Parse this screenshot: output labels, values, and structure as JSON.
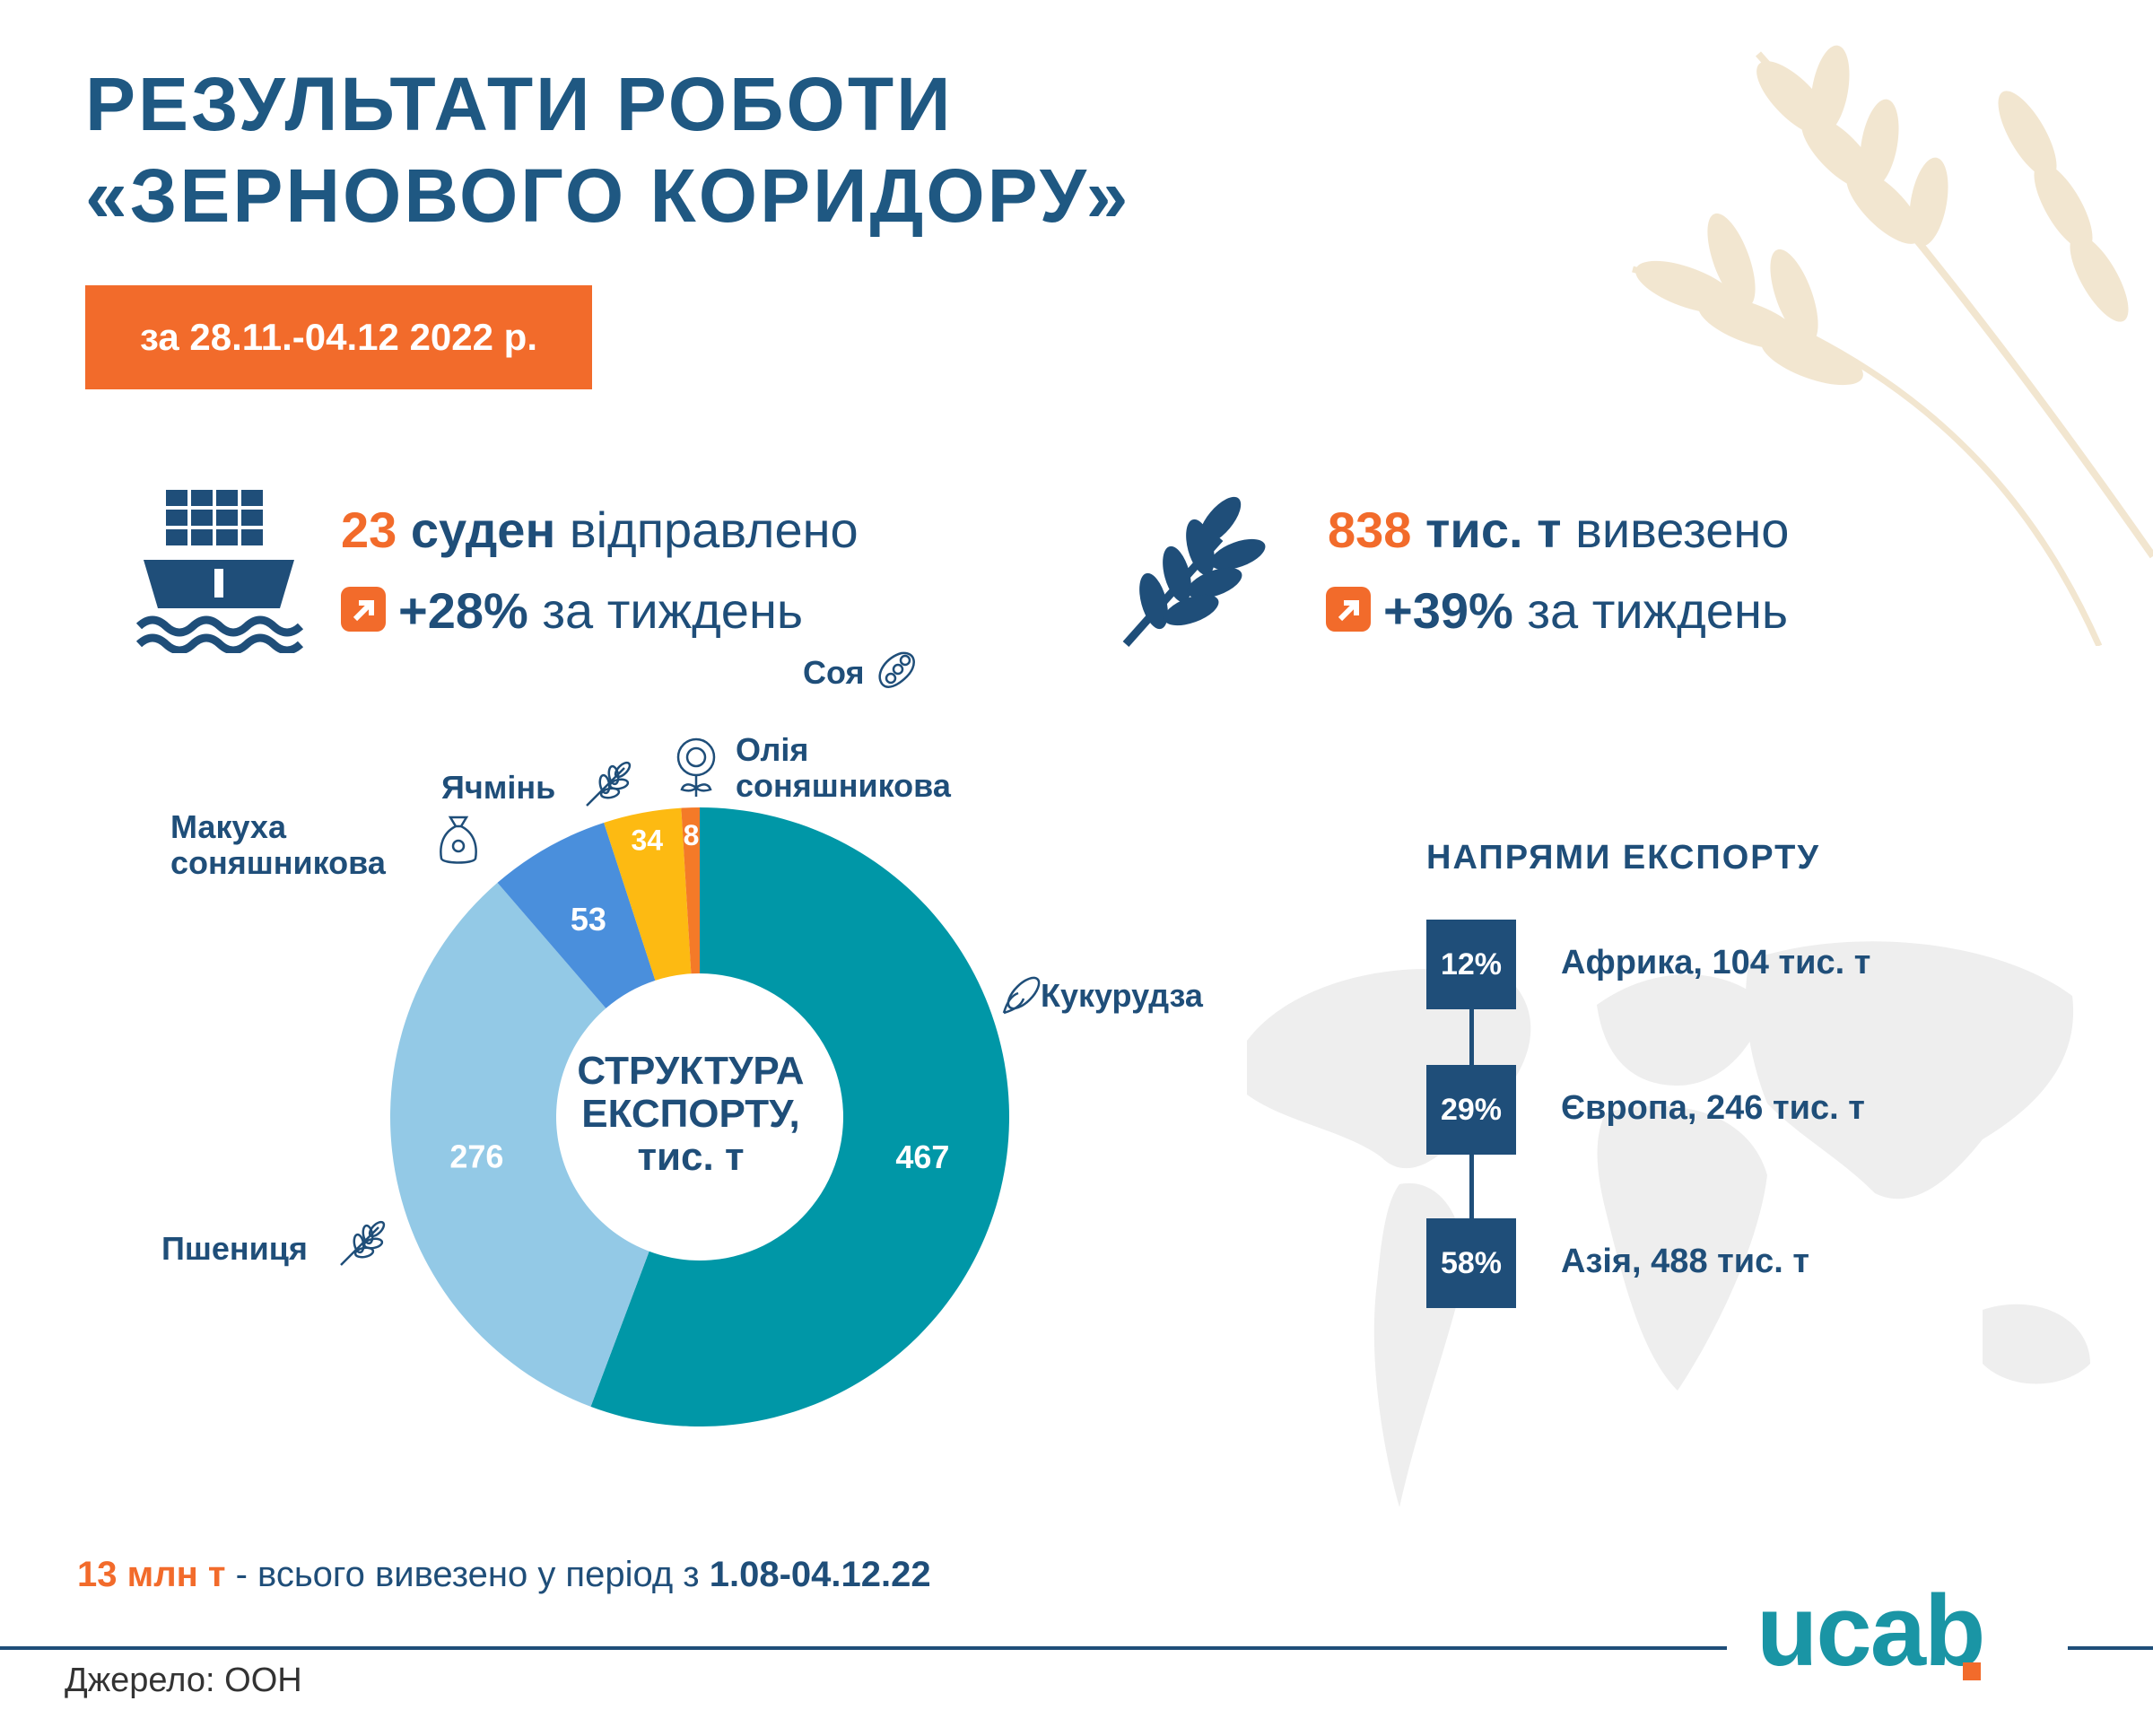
{
  "title": {
    "line1": "РЕЗУЛЬТАТИ РОБОТИ",
    "line2": "«ЗЕРНОВОГО КОРИДОРУ»"
  },
  "period": "за 28.11.-04.12 2022 р.",
  "stats": {
    "ships": {
      "number": "23",
      "unit": "суден",
      "text": "відправлено",
      "change": "+28%",
      "change_text": "за тиждень"
    },
    "tonnage": {
      "number": "838",
      "unit": "тис. т",
      "text": "вивезено",
      "change": "+39%",
      "change_text": "за тиждень"
    }
  },
  "chart_data": {
    "type": "pie",
    "donut": true,
    "title": "СТРУКТУРА ЕКСПОРТУ, тис. т",
    "categories": [
      "Кукурудза",
      "Пшениця",
      "Макуха соняшникова",
      "Ячмінь",
      "Олія соняшникова",
      "Соя"
    ],
    "values": [
      467,
      276,
      53,
      34,
      8,
      0
    ],
    "value_labels": [
      "467",
      "276",
      "53",
      "34",
      "8",
      ""
    ],
    "colors": [
      "#0097a7",
      "#93c9e6",
      "#4a8fdc",
      "#fdba12",
      "#f47a28",
      "#f26b2b"
    ]
  },
  "chart_center": {
    "line1": "СТРУКТУРА",
    "line2": "ЕКСПОРТУ,",
    "line3": "тис. т"
  },
  "labels": {
    "soy": "Соя",
    "oil_line1": "Олія",
    "oil_line2": "соняшникова",
    "barley": "Ячмінь",
    "cake_line1": "Макуха",
    "cake_line2": "соняшникова",
    "corn": "Кукурудза",
    "wheat": "Пшениця"
  },
  "directions": {
    "title": "НАПРЯМИ ЕКСПОРТУ",
    "items": [
      {
        "pct": "12%",
        "label": "Африка, 104 тис. т"
      },
      {
        "pct": "29%",
        "label": "Європа, 246 тис. т"
      },
      {
        "pct": "58%",
        "label": "Азія, 488 тис. т"
      }
    ]
  },
  "footer": {
    "total_value": "13 млн т",
    "total_text": " - всього вивезено у період з ",
    "total_period": "1.08-04.12.22",
    "source": "Джерело: ООН",
    "logo": "ucab"
  }
}
